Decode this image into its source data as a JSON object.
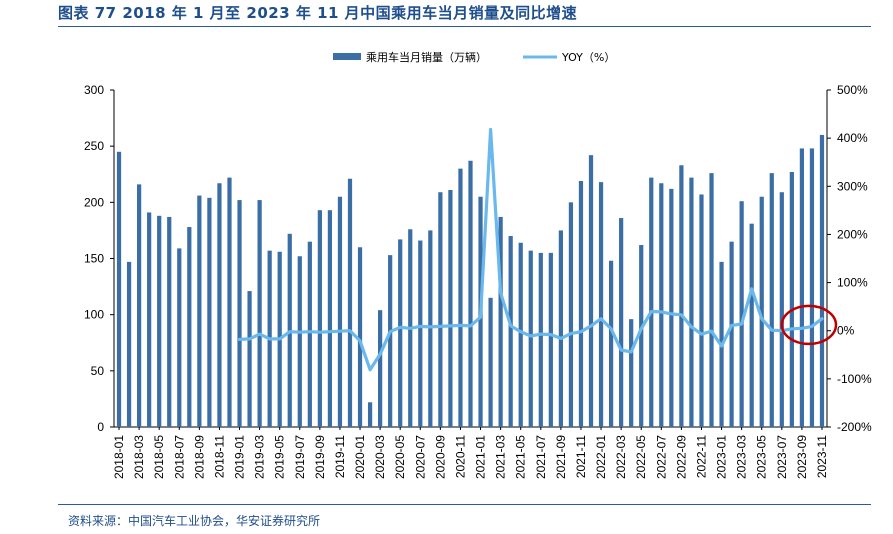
{
  "header": {
    "title": "图表 77 2018 年 1 月至 2023 年 11 月中国乘用车当月销量及同比增速"
  },
  "footer": {
    "source": "资料来源：中国汽车工业协会，华安证券研究所"
  },
  "colors": {
    "bar": "#3a6ea5",
    "line": "#6ab8ec",
    "highlight": "#c00000",
    "rule": "#2c5aa0"
  },
  "chart_data": {
    "type": "bar",
    "title": "",
    "legend": [
      "乘用车当月销量（万辆）",
      "YOY（%）"
    ],
    "legend_position": "top-center",
    "y_left": {
      "min": 0,
      "max": 300,
      "ticks": [
        "0",
        "50",
        "100",
        "150",
        "200",
        "250",
        "300"
      ]
    },
    "y_right": {
      "min": -200,
      "max": 500,
      "ticks": [
        "-200%",
        "-100%",
        "0%",
        "100%",
        "200%",
        "300%",
        "400%",
        "500%"
      ]
    },
    "x_tick_labels": [
      "2018-01",
      "2018-03",
      "2018-05",
      "2018-07",
      "2018-09",
      "2018-11",
      "2019-01",
      "2019-03",
      "2019-05",
      "2019-07",
      "2019-09",
      "2019-11",
      "2020-01",
      "2020-03",
      "2020-05",
      "2020-07",
      "2020-09",
      "2020-11",
      "2021-01",
      "2021-03",
      "2021-05",
      "2021-07",
      "2021-09",
      "2021-11",
      "2022-01",
      "2022-03",
      "2022-05",
      "2022-07",
      "2022-09",
      "2022-11",
      "2023-01",
      "2023-03",
      "2023-05",
      "2023-07",
      "2023-09",
      "2023-11"
    ],
    "categories": [
      "2018-01",
      "2018-02",
      "2018-03",
      "2018-04",
      "2018-05",
      "2018-06",
      "2018-07",
      "2018-08",
      "2018-09",
      "2018-10",
      "2018-11",
      "2018-12",
      "2019-01",
      "2019-02",
      "2019-03",
      "2019-04",
      "2019-05",
      "2019-06",
      "2019-07",
      "2019-08",
      "2019-09",
      "2019-10",
      "2019-11",
      "2019-12",
      "2020-01",
      "2020-02",
      "2020-03",
      "2020-04",
      "2020-05",
      "2020-06",
      "2020-07",
      "2020-08",
      "2020-09",
      "2020-10",
      "2020-11",
      "2020-12",
      "2021-01",
      "2021-02",
      "2021-03",
      "2021-04",
      "2021-05",
      "2021-06",
      "2021-07",
      "2021-08",
      "2021-09",
      "2021-10",
      "2021-11",
      "2021-12",
      "2022-01",
      "2022-02",
      "2022-03",
      "2022-04",
      "2022-05",
      "2022-06",
      "2022-07",
      "2022-08",
      "2022-09",
      "2022-10",
      "2022-11",
      "2022-12",
      "2023-01",
      "2023-02",
      "2023-03",
      "2023-04",
      "2023-05",
      "2023-06",
      "2023-07",
      "2023-08",
      "2023-09",
      "2023-10",
      "2023-11"
    ],
    "series": [
      {
        "name": "乘用车当月销量（万辆）",
        "type": "bar",
        "axis": "left",
        "values": [
          245,
          147,
          216,
          191,
          188,
          187,
          159,
          178,
          206,
          204,
          217,
          222,
          202,
          121,
          202,
          157,
          156,
          172,
          152,
          165,
          193,
          193,
          205,
          221,
          160,
          22,
          104,
          153,
          167,
          176,
          166,
          175,
          209,
          211,
          230,
          237,
          205,
          115,
          187,
          170,
          164,
          157,
          155,
          155,
          175,
          200,
          219,
          242,
          218,
          148,
          186,
          96,
          162,
          222,
          217,
          212,
          233,
          222,
          207,
          226,
          147,
          165,
          201,
          181,
          205,
          226,
          209,
          227,
          248,
          248,
          260
        ]
      },
      {
        "name": "YOY（%）",
        "type": "line",
        "axis": "right",
        "values": [
          null,
          null,
          null,
          null,
          null,
          null,
          null,
          null,
          null,
          null,
          null,
          null,
          -18,
          -17,
          -7,
          -17,
          -17,
          -2,
          -3,
          -2,
          -3,
          -2,
          -1,
          0,
          -21,
          -81,
          -49,
          -2,
          7,
          5,
          9,
          8,
          9,
          10,
          11,
          10,
          28,
          418,
          79,
          10,
          -2,
          -11,
          -7,
          -8,
          -16,
          -6,
          -2,
          10,
          25,
          4,
          -40,
          -44,
          4,
          40,
          39,
          35,
          33,
          8,
          -7,
          -1,
          -32,
          11,
          14,
          87,
          25,
          1,
          0,
          4,
          5,
          9,
          25
        ]
      }
    ],
    "annotation": "red-circle-highlight-2023-08-to-2023-11"
  }
}
